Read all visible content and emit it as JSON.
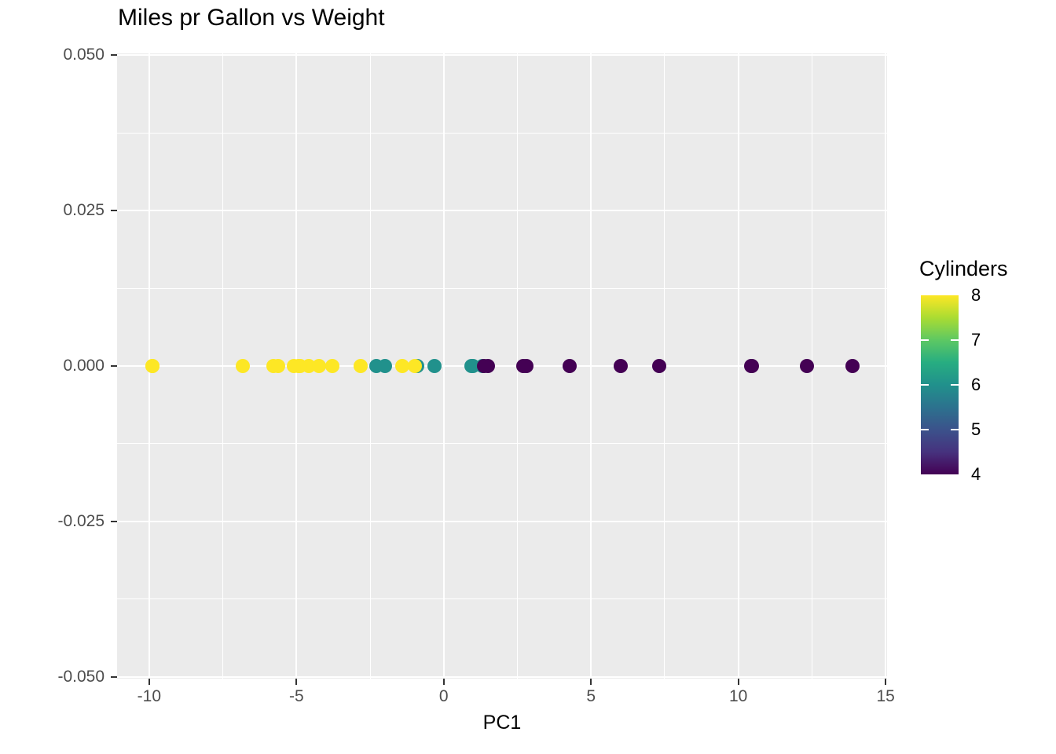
{
  "chart_data": {
    "type": "scatter",
    "title": "Miles pr Gallon vs Weight",
    "xlabel": "PC1",
    "ylabel": "",
    "panel_background": "#EBEBEB",
    "grid_color": "#FFFFFF",
    "tick_mark_color": "#333333",
    "axis_text_color": "#4D4D4D",
    "x_axis": {
      "lim": [
        -11.09,
        15.05
      ],
      "major": [
        {
          "v": -10,
          "label": "-10"
        },
        {
          "v": -5,
          "label": "-5"
        },
        {
          "v": 0,
          "label": "0"
        },
        {
          "v": 5,
          "label": "5"
        },
        {
          "v": 10,
          "label": "10"
        },
        {
          "v": 15,
          "label": "15"
        }
      ],
      "minor": [
        -7.5,
        -2.5,
        2.5,
        7.5,
        12.5
      ]
    },
    "y_axis": {
      "lim": [
        -0.0503,
        0.0503
      ],
      "major": [
        {
          "v": 0.05,
          "label": "0.050"
        },
        {
          "v": 0.025,
          "label": "0.025"
        },
        {
          "v": 0.0,
          "label": "0.000"
        },
        {
          "v": -0.025,
          "label": "-0.025"
        },
        {
          "v": -0.05,
          "label": "-0.050"
        }
      ],
      "minor": [
        0.0375,
        0.0125,
        -0.0125,
        -0.0375
      ]
    },
    "legend": {
      "title": "Cylinders",
      "range": [
        4,
        8
      ],
      "breaks": [
        {
          "v": 8,
          "label": "8"
        },
        {
          "v": 7,
          "label": "7"
        },
        {
          "v": 6,
          "label": "6"
        },
        {
          "v": 5,
          "label": "5"
        },
        {
          "v": 4,
          "label": "4"
        }
      ],
      "bar_tick_values": [
        7,
        6,
        5
      ],
      "gradient": [
        {
          "t": 0,
          "c": "#440154"
        },
        {
          "t": 0.125,
          "c": "#46327E"
        },
        {
          "t": 0.25,
          "c": "#3B528B"
        },
        {
          "t": 0.375,
          "c": "#2C728E"
        },
        {
          "t": 0.5,
          "c": "#21918C"
        },
        {
          "t": 0.625,
          "c": "#27AD81"
        },
        {
          "t": 0.75,
          "c": "#5DC863"
        },
        {
          "t": 0.875,
          "c": "#AADC32"
        },
        {
          "t": 1,
          "c": "#FDE725"
        }
      ]
    },
    "color_map": {
      "4": "#440154",
      "6": "#21918C",
      "8": "#FDE725"
    },
    "points": [
      {
        "x": 0.98,
        "y": 0,
        "cyl": 6
      },
      {
        "x": 0.95,
        "y": 0,
        "cyl": 6
      },
      {
        "x": 2.81,
        "y": 0,
        "cyl": 4
      },
      {
        "x": 1.3,
        "y": 0,
        "cyl": 6
      },
      {
        "x": -1.41,
        "y": 0,
        "cyl": 8
      },
      {
        "x": -2.0,
        "y": 0,
        "cyl": 6
      },
      {
        "x": -5.78,
        "y": 0,
        "cyl": 8
      },
      {
        "x": 4.27,
        "y": 0,
        "cyl": 4
      },
      {
        "x": 2.69,
        "y": 0,
        "cyl": 4
      },
      {
        "x": -0.91,
        "y": 0,
        "cyl": 6
      },
      {
        "x": -2.3,
        "y": 0,
        "cyl": 6
      },
      {
        "x": -3.77,
        "y": 0,
        "cyl": 8
      },
      {
        "x": -2.83,
        "y": 0,
        "cyl": 8
      },
      {
        "x": -4.92,
        "y": 0,
        "cyl": 8
      },
      {
        "x": -9.88,
        "y": 0,
        "cyl": 8
      },
      {
        "x": -9.9,
        "y": 0,
        "cyl": 8
      },
      {
        "x": -5.63,
        "y": 0,
        "cyl": 8
      },
      {
        "x": 12.33,
        "y": 0,
        "cyl": 4
      },
      {
        "x": 10.43,
        "y": 0,
        "cyl": 4
      },
      {
        "x": 13.87,
        "y": 0,
        "cyl": 4
      },
      {
        "x": 1.5,
        "y": 0,
        "cyl": 4
      },
      {
        "x": -4.59,
        "y": 0,
        "cyl": 8
      },
      {
        "x": -4.87,
        "y": 0,
        "cyl": 8
      },
      {
        "x": -6.81,
        "y": 0,
        "cyl": 8
      },
      {
        "x": -0.97,
        "y": 0,
        "cyl": 8
      },
      {
        "x": 7.32,
        "y": 0,
        "cyl": 4
      },
      {
        "x": 6.0,
        "y": 0,
        "cyl": 4
      },
      {
        "x": 10.45,
        "y": 0,
        "cyl": 4
      },
      {
        "x": -4.24,
        "y": 0,
        "cyl": 8
      },
      {
        "x": -0.32,
        "y": 0,
        "cyl": 6
      },
      {
        "x": -5.09,
        "y": 0,
        "cyl": 8
      },
      {
        "x": 1.36,
        "y": 0,
        "cyl": 4
      }
    ]
  }
}
